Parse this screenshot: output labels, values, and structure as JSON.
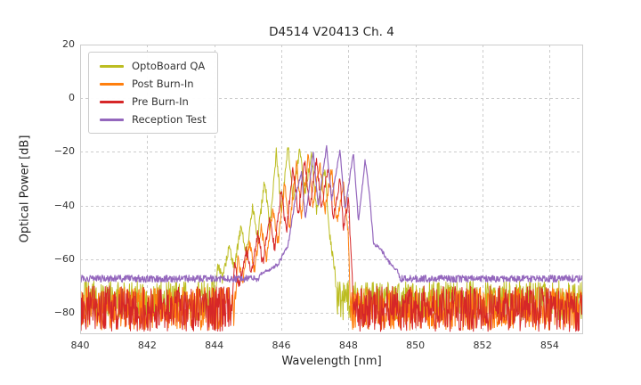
{
  "chart_data": {
    "type": "line",
    "title": "D4514 V20413 Ch. 4",
    "xlabel": "Wavelength [nm]",
    "ylabel": "Optical Power [dB]",
    "xlim": [
      840,
      855
    ],
    "ylim": [
      -88,
      20
    ],
    "xticks": [
      840,
      842,
      844,
      846,
      848,
      850,
      852,
      854
    ],
    "yticks": [
      20,
      0,
      -20,
      -40,
      -60,
      -80
    ],
    "grid": true,
    "grid_color": "#cccccc",
    "spine_color": "#cccccc",
    "background": "#ffffff",
    "legend_position": "upper-left",
    "series": [
      {
        "name": "OptoBoard QA",
        "color": "#bcbd22",
        "noise_floor_top": -68,
        "noise_spread": 15,
        "env_noise": 2,
        "envelope": [
          [
            840,
            -95
          ],
          [
            843.95,
            -95
          ],
          [
            844.1,
            -62
          ],
          [
            844.25,
            -68
          ],
          [
            844.45,
            -55
          ],
          [
            844.6,
            -63
          ],
          [
            844.8,
            -48
          ],
          [
            844.95,
            -58
          ],
          [
            845.15,
            -40
          ],
          [
            845.3,
            -52
          ],
          [
            845.5,
            -30
          ],
          [
            845.65,
            -48
          ],
          [
            845.85,
            -20
          ],
          [
            846.0,
            -42
          ],
          [
            846.2,
            -18
          ],
          [
            846.35,
            -38
          ],
          [
            846.55,
            -19
          ],
          [
            846.7,
            -36
          ],
          [
            846.9,
            -21
          ],
          [
            847.05,
            -42
          ],
          [
            847.3,
            -27
          ],
          [
            847.45,
            -52
          ],
          [
            847.6,
            -65
          ],
          [
            847.75,
            -95
          ],
          [
            855,
            -95
          ]
        ]
      },
      {
        "name": "Post Burn-In",
        "color": "#ff7f0e",
        "noise_floor_top": -70.5,
        "noise_spread": 16,
        "env_noise": 2,
        "envelope": [
          [
            840,
            -95
          ],
          [
            844.55,
            -95
          ],
          [
            844.7,
            -60
          ],
          [
            844.85,
            -68
          ],
          [
            845.05,
            -54
          ],
          [
            845.2,
            -64
          ],
          [
            845.4,
            -48
          ],
          [
            845.55,
            -60
          ],
          [
            845.75,
            -42
          ],
          [
            845.9,
            -54
          ],
          [
            846.1,
            -32
          ],
          [
            846.25,
            -48
          ],
          [
            846.45,
            -24
          ],
          [
            846.6,
            -43
          ],
          [
            846.8,
            -22
          ],
          [
            846.95,
            -40
          ],
          [
            847.15,
            -24
          ],
          [
            847.3,
            -42
          ],
          [
            847.5,
            -26
          ],
          [
            847.65,
            -46
          ],
          [
            847.85,
            -32
          ],
          [
            848.0,
            -52
          ],
          [
            848.1,
            -95
          ],
          [
            855,
            -95
          ]
        ]
      },
      {
        "name": "Pre Burn-In",
        "color": "#d62728",
        "noise_floor_top": -70,
        "noise_spread": 17,
        "env_noise": 2,
        "envelope": [
          [
            840,
            -95
          ],
          [
            844.45,
            -95
          ],
          [
            844.6,
            -62
          ],
          [
            844.75,
            -70
          ],
          [
            844.95,
            -56
          ],
          [
            845.1,
            -66
          ],
          [
            845.3,
            -50
          ],
          [
            845.45,
            -62
          ],
          [
            845.65,
            -44
          ],
          [
            845.8,
            -56
          ],
          [
            846.0,
            -34
          ],
          [
            846.15,
            -50
          ],
          [
            846.35,
            -25
          ],
          [
            846.5,
            -44
          ],
          [
            846.7,
            -23
          ],
          [
            846.85,
            -40
          ],
          [
            847.05,
            -23
          ],
          [
            847.2,
            -41
          ],
          [
            847.4,
            -25
          ],
          [
            847.55,
            -44
          ],
          [
            847.75,
            -30
          ],
          [
            847.85,
            -48
          ],
          [
            848.0,
            -38
          ],
          [
            848.1,
            -62
          ],
          [
            848.2,
            -95
          ],
          [
            855,
            -95
          ]
        ]
      },
      {
        "name": "Reception Test",
        "color": "#9467bd",
        "noise_floor_top": -66,
        "noise_spread": 2.6,
        "env_noise": 0.7,
        "envelope": [
          [
            840,
            -95
          ],
          [
            845.2,
            -95
          ],
          [
            845.35,
            -66
          ],
          [
            845.9,
            -62
          ],
          [
            846.2,
            -55
          ],
          [
            846.45,
            -35
          ],
          [
            846.6,
            -28
          ],
          [
            846.72,
            -45
          ],
          [
            846.95,
            -20
          ],
          [
            847.1,
            -40
          ],
          [
            847.35,
            -18
          ],
          [
            847.5,
            -38
          ],
          [
            847.75,
            -19
          ],
          [
            847.9,
            -42
          ],
          [
            848.15,
            -20
          ],
          [
            848.3,
            -46
          ],
          [
            848.5,
            -23
          ],
          [
            848.62,
            -35
          ],
          [
            848.75,
            -54
          ],
          [
            849.0,
            -57
          ],
          [
            849.2,
            -61
          ],
          [
            849.5,
            -65
          ],
          [
            849.8,
            -95
          ],
          [
            855,
            -95
          ]
        ]
      }
    ]
  }
}
